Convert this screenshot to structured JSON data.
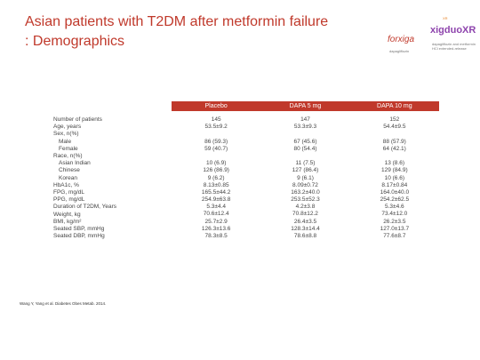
{
  "title": {
    "line1": "Asian patients with T2DM after metformin failure",
    "line2": ": Demographics"
  },
  "logos": {
    "forxiga": {
      "brand": "forxiga",
      "sub": "dapagliflozin"
    },
    "xigduo": {
      "top": "XR",
      "brand": "xigduoXR",
      "sub": "dapagliflozin and metformin HCl extended-release"
    }
  },
  "table": {
    "columns": [
      "Placebo",
      "DAPA 5 mg",
      "DAPA 10 mg"
    ],
    "rows": [
      {
        "label": "Number of patients",
        "indent": false,
        "values": [
          "145",
          "147",
          "152"
        ]
      },
      {
        "label": "Age, years",
        "indent": false,
        "values": [
          "53.5±9.2",
          "53.3±9.3",
          "54.4±9.5"
        ]
      },
      {
        "label": "Sex, n(%)",
        "indent": false,
        "values": [
          "",
          "",
          ""
        ]
      },
      {
        "label": "Male",
        "indent": true,
        "values": [
          "86 (59.3)",
          "67 (45.6)",
          "88 (57.9)"
        ]
      },
      {
        "label": "Female",
        "indent": true,
        "values": [
          "59 (40.7)",
          "80 (54.4)",
          "64 (42.1)"
        ]
      },
      {
        "label": "Race, n(%)",
        "indent": false,
        "values": [
          "",
          "",
          ""
        ]
      },
      {
        "label": "Asian Indian",
        "indent": true,
        "values": [
          "10 (6.9)",
          "11 (7.5)",
          "13 (8.6)"
        ]
      },
      {
        "label": "Chinese",
        "indent": true,
        "values": [
          "126 (86.9)",
          "127 (86.4)",
          "129 (84.9)"
        ]
      },
      {
        "label": "Korean",
        "indent": true,
        "values": [
          "9 (6.2)",
          "9 (6.1)",
          "10 (6.6)"
        ]
      },
      {
        "label": "HbA1c, %",
        "indent": false,
        "values": [
          "8.13±0.85",
          "8.09±0.72",
          "8.17±0.84"
        ]
      },
      {
        "label": "FPG, mg/dL",
        "indent": false,
        "values": [
          "165.5±44.2",
          "163.2±40.0",
          "164.0±40.0"
        ]
      },
      {
        "label": "PPG, mg/dL",
        "indent": false,
        "values": [
          "254.9±63.8",
          "253.5±52.3",
          "254.2±62.5"
        ]
      },
      {
        "label": "Duration of T2DM, Years",
        "indent": false,
        "values": [
          "5.3±4.4",
          "4.2±3.8",
          "5.3±4.6"
        ]
      },
      {
        "label": "Weight, kg",
        "indent": false,
        "values": [
          "70.6±12.4",
          "70.8±12.2",
          "73.4±12.0"
        ]
      },
      {
        "label": "BMI, kg/m²",
        "indent": false,
        "values": [
          "25.7±2.9",
          "26.4±3.5",
          "26.2±3.5"
        ]
      },
      {
        "label": "Seated SBP, mmHg",
        "indent": false,
        "values": [
          "126.3±13.6",
          "128.3±14.4",
          "127.0±13.7"
        ]
      },
      {
        "label": "Seated DBP, mmHg",
        "indent": false,
        "values": [
          "78.3±8.5",
          "78.6±8.8",
          "77.6±8.7"
        ]
      }
    ]
  },
  "footnote": "Wang Y, Yang et al. Diabetes Obes Metab. 2014."
}
